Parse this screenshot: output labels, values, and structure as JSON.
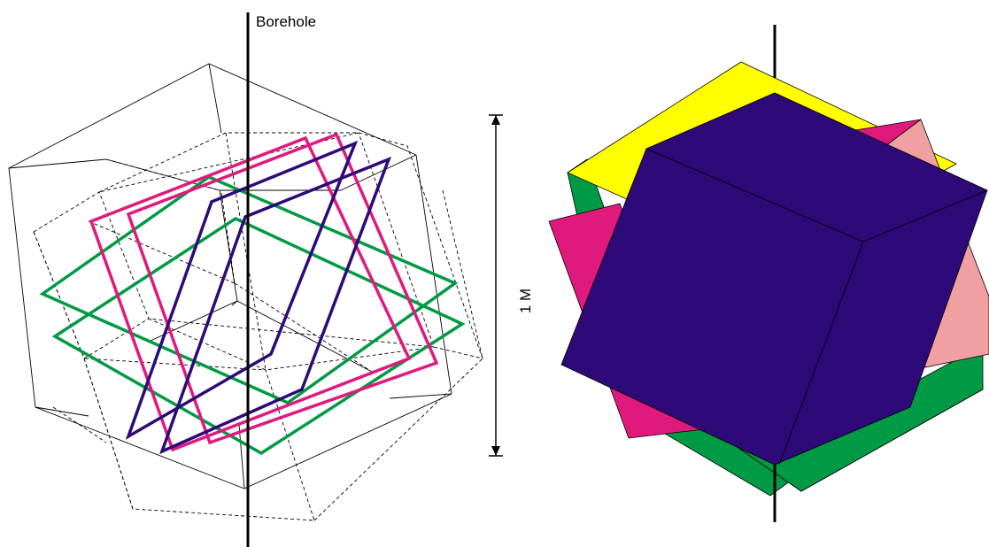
{
  "labels": {
    "borehole": "Borehole",
    "scale": "1 M"
  },
  "colors": {
    "yellow": "#ffff00",
    "green": "#009a44",
    "magenta": "#e0197d",
    "pink": "#f0a0a0",
    "indigo": "#2d0a77",
    "wire": "#000000"
  }
}
